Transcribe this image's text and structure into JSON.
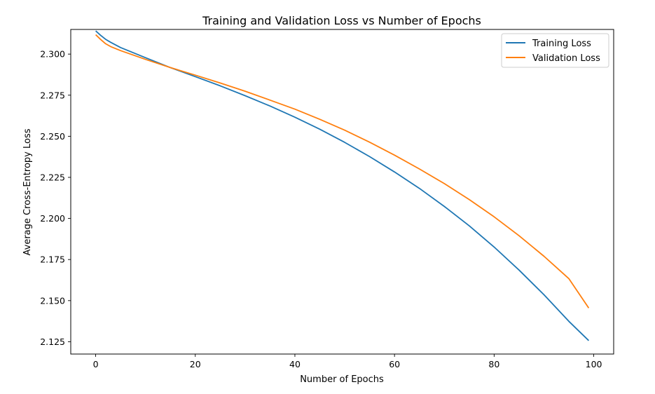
{
  "chart_data": {
    "type": "line",
    "title": "Training and Validation Loss vs Number of Epochs",
    "xlabel": "Number of Epochs",
    "ylabel": "Average Cross-Entropy Loss",
    "xlim": [
      -5,
      104
    ],
    "ylim": [
      2.1175,
      2.315
    ],
    "xticks": [
      0,
      20,
      40,
      60,
      80,
      100
    ],
    "yticks": [
      2.125,
      2.15,
      2.175,
      2.2,
      2.225,
      2.25,
      2.275,
      2.3
    ],
    "xtick_labels": [
      "0",
      "20",
      "40",
      "60",
      "80",
      "100"
    ],
    "ytick_labels": [
      "2.125",
      "2.150",
      "2.175",
      "2.200",
      "2.225",
      "2.250",
      "2.275",
      "2.300"
    ],
    "grid": false,
    "legend_position": "top-right",
    "series": [
      {
        "name": "Training Loss",
        "color": "#1f77b4",
        "x": [
          0,
          1,
          2,
          3,
          5,
          10,
          15,
          20,
          25,
          30,
          35,
          40,
          45,
          50,
          55,
          60,
          65,
          70,
          75,
          80,
          85,
          90,
          95,
          99
        ],
        "y": [
          2.3141,
          2.3114,
          2.309,
          2.3072,
          2.304,
          2.2978,
          2.2918,
          2.2863,
          2.2807,
          2.2747,
          2.2684,
          2.2616,
          2.2543,
          2.2463,
          2.2376,
          2.2283,
          2.2183,
          2.2073,
          2.1955,
          2.1826,
          2.1686,
          2.1536,
          2.1374,
          2.1257
        ]
      },
      {
        "name": "Validation Loss",
        "color": "#ff7f0e",
        "x": [
          0,
          1,
          2,
          3,
          5,
          10,
          15,
          20,
          25,
          30,
          35,
          40,
          45,
          50,
          55,
          60,
          65,
          70,
          75,
          80,
          85,
          90,
          95,
          99
        ],
        "y": [
          2.3118,
          2.3089,
          2.3063,
          2.3046,
          2.3021,
          2.2968,
          2.2918,
          2.2872,
          2.2824,
          2.2774,
          2.272,
          2.2665,
          2.2603,
          2.2537,
          2.2464,
          2.2385,
          2.2301,
          2.2212,
          2.2115,
          2.201,
          2.1895,
          2.177,
          2.1634,
          2.1455
        ]
      }
    ]
  }
}
